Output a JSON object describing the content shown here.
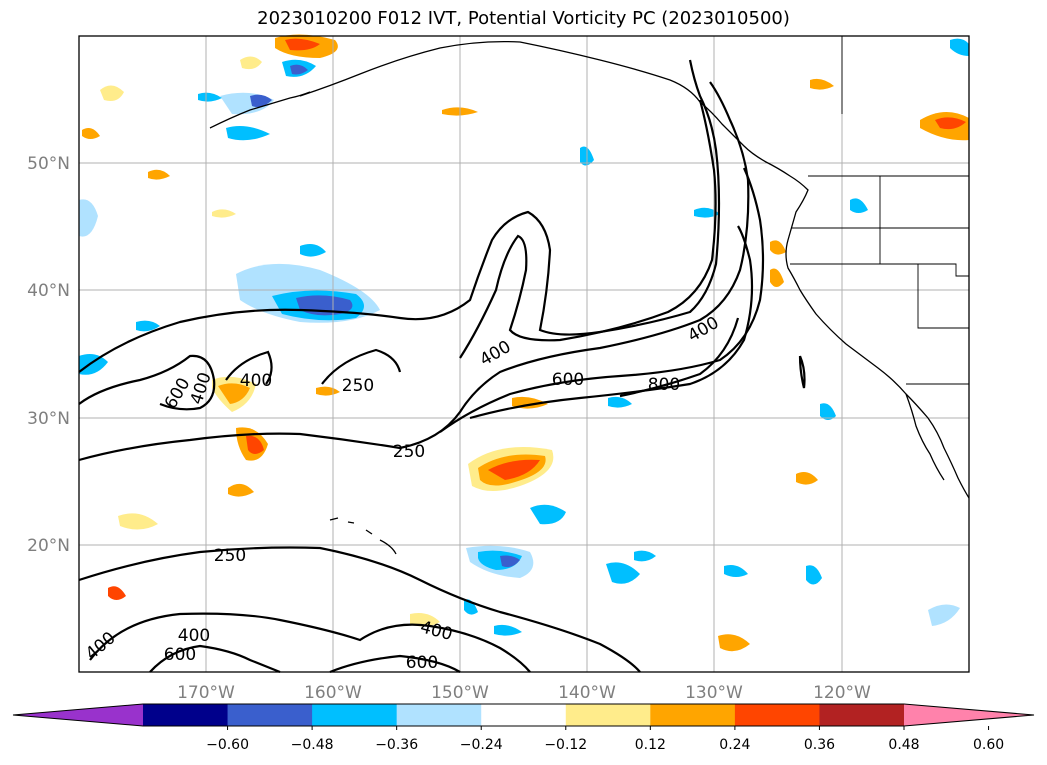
{
  "title": "2023010200 F012 IVT, Potential Vorticity PC (2023010500)",
  "map": {
    "lon_range": [
      -180,
      -110
    ],
    "lat_range": [
      10,
      60
    ],
    "lat_ticks": [
      {
        "value": 20,
        "label": "20°N"
      },
      {
        "value": 30,
        "label": "30°N"
      },
      {
        "value": 40,
        "label": "40°N"
      },
      {
        "value": 50,
        "label": "50°N"
      }
    ],
    "lon_ticks": [
      {
        "value": -170,
        "label": "170°W"
      },
      {
        "value": -160,
        "label": "160°W"
      },
      {
        "value": -150,
        "label": "150°W"
      },
      {
        "value": -140,
        "label": "140°W"
      },
      {
        "value": -130,
        "label": "130°W"
      },
      {
        "value": -120,
        "label": "120°W"
      }
    ],
    "grid_lines": [
      -170,
      -160,
      -150,
      -140,
      -130,
      -120,
      20,
      30,
      40,
      50
    ]
  },
  "ivt_contour_labels": [
    "400",
    "600",
    "400",
    "250",
    "400",
    "600",
    "800",
    "400",
    "250",
    "250",
    "400",
    "600",
    "400",
    "600",
    "400"
  ],
  "colorbar": {
    "colors": [
      "#9932cc",
      "#00008b",
      "#3a5fcd",
      "#00bfff",
      "#b0e2ff",
      "#ffffff",
      "#ffec8b",
      "#ffa500",
      "#ff4500",
      "#b22222",
      "#ff82ab"
    ],
    "tick_labels": [
      "−0.60",
      "−0.48",
      "−0.36",
      "−0.24",
      "−0.12",
      "0.12",
      "0.24",
      "0.36",
      "0.48",
      "0.60"
    ]
  },
  "legend_colors": {
    "ivt_contour": "#000000",
    "coastline": "#000000",
    "grid": "#b0b0b0"
  }
}
